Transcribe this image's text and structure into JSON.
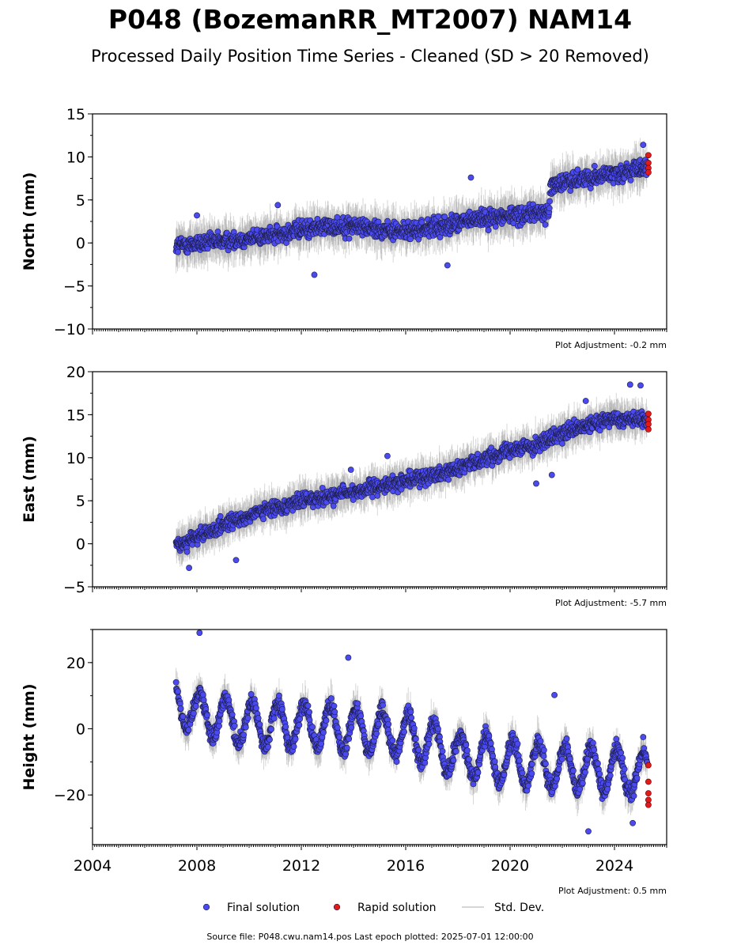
{
  "chart_data": {
    "type": "scatter",
    "title": "P048 (BozemanRR_MT2007) NAM14",
    "subtitle": "Processed Daily Position Time Series - Cleaned (SD > 20 Removed)",
    "xlim": [
      2004.0,
      2026.0
    ],
    "x_ticks": [
      2004,
      2008,
      2012,
      2016,
      2020,
      2024
    ],
    "x_tick_labels": [
      "2004",
      "2008",
      "2012",
      "2016",
      "2020",
      "2024"
    ],
    "panels": [
      {
        "ylabel": "North (mm)",
        "ylim": [
          -10,
          15
        ],
        "y_ticks": [
          -10,
          -5,
          0,
          5,
          10,
          15
        ],
        "y_tick_labels": [
          "−10",
          "−5",
          "0",
          "5",
          "10",
          "15"
        ],
        "adjustment": "Plot Adjustment: -0.2 mm",
        "trend": [
          [
            2007.2,
            -0.3
          ],
          [
            2009.0,
            0.2
          ],
          [
            2011.0,
            0.9
          ],
          [
            2012.5,
            1.8
          ],
          [
            2014.0,
            2.0
          ],
          [
            2016.0,
            1.3
          ],
          [
            2017.5,
            2.0
          ],
          [
            2019.0,
            2.9
          ],
          [
            2021.5,
            3.6
          ],
          [
            2021.55,
            6.7
          ],
          [
            2023.0,
            7.6
          ],
          [
            2025.25,
            8.7
          ]
        ],
        "scatter_amp": 1.4,
        "std_amp": 2.2,
        "outliers": [
          [
            2008.0,
            3.2
          ],
          [
            2011.1,
            4.4
          ],
          [
            2012.5,
            -3.7
          ],
          [
            2017.6,
            -2.6
          ],
          [
            2018.5,
            7.6
          ],
          [
            2025.1,
            11.4
          ]
        ],
        "rapid": [
          [
            2025.3,
            10.2
          ],
          [
            2025.3,
            9.3
          ],
          [
            2025.3,
            8.7
          ],
          [
            2025.3,
            8.2
          ]
        ]
      },
      {
        "ylabel": "East (mm)",
        "ylim": [
          -5,
          20
        ],
        "y_ticks": [
          -5,
          0,
          5,
          10,
          15,
          20
        ],
        "y_tick_labels": [
          "−5",
          "0",
          "5",
          "10",
          "15",
          "20"
        ],
        "adjustment": "Plot Adjustment: -5.7 mm",
        "trend": [
          [
            2007.2,
            -0.2
          ],
          [
            2008.0,
            0.8
          ],
          [
            2010.0,
            3.3
          ],
          [
            2012.0,
            5.0
          ],
          [
            2014.0,
            6.0
          ],
          [
            2016.0,
            7.3
          ],
          [
            2018.0,
            8.7
          ],
          [
            2020.0,
            11.0
          ],
          [
            2021.0,
            11.4
          ],
          [
            2022.0,
            12.8
          ],
          [
            2024.0,
            14.6
          ],
          [
            2025.25,
            14.4
          ]
        ],
        "scatter_amp": 1.2,
        "std_amp": 2.0,
        "outliers": [
          [
            2007.7,
            -2.8
          ],
          [
            2009.5,
            -1.9
          ],
          [
            2013.9,
            8.6
          ],
          [
            2015.3,
            10.2
          ],
          [
            2021.0,
            7.0
          ],
          [
            2021.6,
            8.0
          ],
          [
            2022.9,
            16.6
          ],
          [
            2024.6,
            18.5
          ],
          [
            2025.0,
            18.4
          ]
        ],
        "rapid": [
          [
            2025.3,
            15.1
          ],
          [
            2025.3,
            14.4
          ],
          [
            2025.3,
            13.9
          ],
          [
            2025.3,
            13.3
          ]
        ]
      },
      {
        "ylabel": "Height (mm)",
        "ylim": [
          -35,
          30
        ],
        "y_ticks": [
          -20,
          0,
          20
        ],
        "y_tick_labels": [
          "−20",
          "0",
          "20"
        ],
        "adjustment": "Plot Adjustment: 0.5 mm",
        "trend": [
          [
            2007.2,
            8.0
          ],
          [
            2008.0,
            5.0
          ],
          [
            2010.0,
            1.5
          ],
          [
            2012.0,
            1.0
          ],
          [
            2014.0,
            0.0
          ],
          [
            2016.0,
            -2.0
          ],
          [
            2017.0,
            -4.5
          ],
          [
            2018.0,
            -8.0
          ],
          [
            2020.0,
            -10.0
          ],
          [
            2022.0,
            -11.5
          ],
          [
            2024.0,
            -12.5
          ],
          [
            2025.25,
            -14.0
          ]
        ],
        "seasonal_amp": 6.5,
        "scatter_amp": 3.5,
        "std_amp": 5.0,
        "outliers": [
          [
            2008.1,
            29.0
          ],
          [
            2013.8,
            21.5
          ],
          [
            2021.7,
            10.2
          ],
          [
            2023.0,
            -31.0
          ],
          [
            2024.7,
            -28.5
          ],
          [
            2025.1,
            -2.5
          ]
        ],
        "rapid": [
          [
            2025.3,
            -11.0
          ],
          [
            2025.3,
            -16.0
          ],
          [
            2025.3,
            -19.5
          ],
          [
            2025.3,
            -21.5
          ],
          [
            2025.3,
            -23.0
          ]
        ]
      }
    ],
    "legend": [
      {
        "label": "Final solution",
        "color": "#4a4af0"
      },
      {
        "label": "Rapid solution",
        "color": "#e41a1a"
      },
      {
        "label": "Std. Dev.",
        "color": "#c8c8c8"
      }
    ],
    "source_note": "Source file: P048.cwu.nam14.pos  Last epoch plotted: 2025-07-01 12:00:00"
  }
}
